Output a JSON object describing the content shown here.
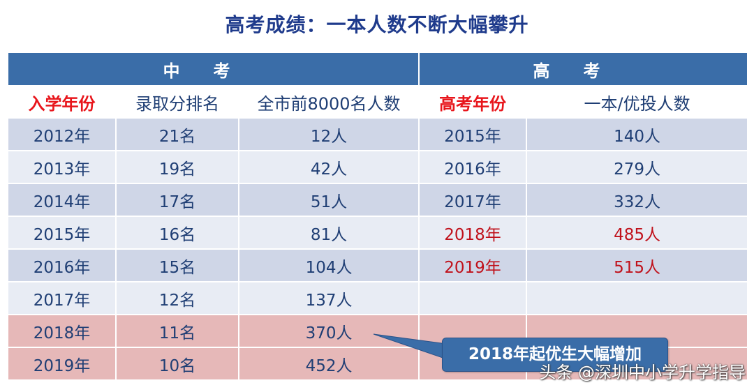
{
  "title": "高考成绩：一本人数不断大幅攀升",
  "groups": {
    "zhongkao": "中考",
    "gaokao": "高考"
  },
  "headers": [
    "入学年份",
    "录取分排名",
    "全市前8000名人数",
    "高考年份",
    "一本/优投人数"
  ],
  "rows": [
    [
      "2012年",
      "21名",
      "12人",
      "2015年",
      "140人"
    ],
    [
      "2013年",
      "19名",
      "42人",
      "2016年",
      "279人"
    ],
    [
      "2014年",
      "17名",
      "51人",
      "2017年",
      "332人"
    ],
    [
      "2015年",
      "16名",
      "81人",
      "2018年",
      "485人"
    ],
    [
      "2016年",
      "15名",
      "104人",
      "2019年",
      "515人"
    ],
    [
      "2017年",
      "12名",
      "137人",
      "",
      ""
    ],
    [
      "2018年",
      "11名",
      "370人",
      "",
      ""
    ],
    [
      "2019年",
      "10名",
      "452人",
      "",
      ""
    ]
  ],
  "callout": "2018年起优生大幅增加",
  "watermark": "头条 @深圳中小学升学指导",
  "colors": {
    "header_blue": "#3a6da8",
    "highlight_red": "#c0111b",
    "pink_row": "#e6b8b8"
  }
}
